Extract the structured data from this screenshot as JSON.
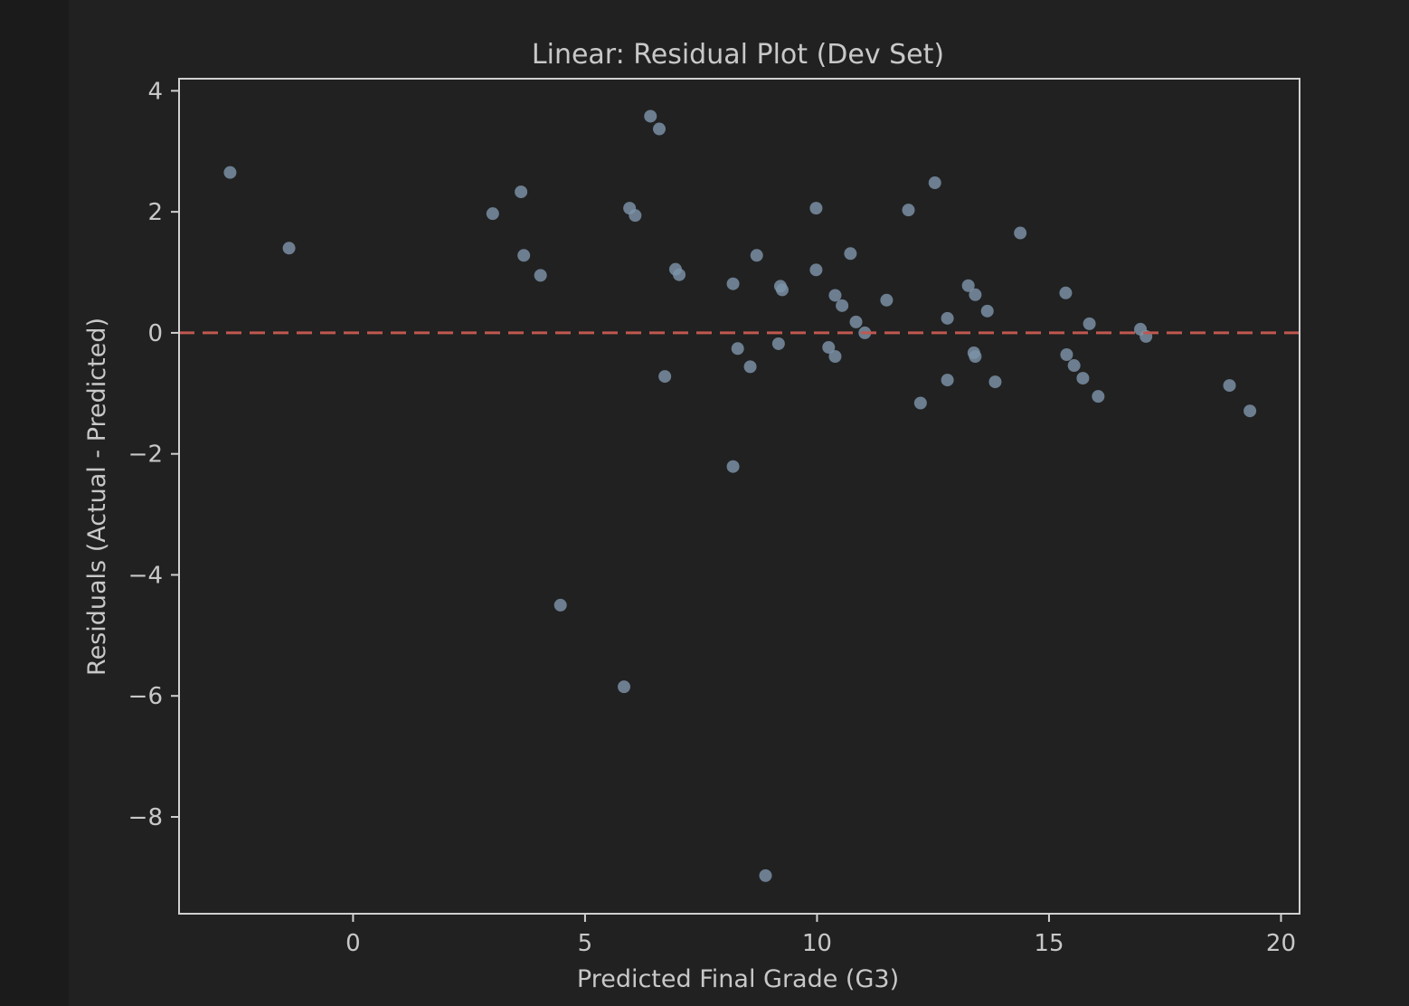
{
  "chart_data": {
    "type": "scatter",
    "title": "Linear: Residual Plot (Dev Set)",
    "xlabel": "Predicted Final Grade (G3)",
    "ylabel": "Residuals (Actual - Predicted)",
    "xlim": [
      -3.75,
      20.4
    ],
    "ylim": [
      -9.6,
      4.2
    ],
    "xticks": [
      0,
      5,
      10,
      15,
      20
    ],
    "yticks": [
      4,
      2,
      0,
      -2,
      -4,
      -6,
      -8
    ],
    "xtick_labels": [
      "0",
      "5",
      "10",
      "15",
      "20"
    ],
    "ytick_labels": [
      "4",
      "2",
      "0",
      "−2",
      "−4",
      "−6",
      "−8"
    ],
    "grid": false,
    "reference_line": {
      "y": 0,
      "style": "dashed",
      "color": "#c0584f"
    },
    "marker_color": "#7d93a8",
    "axes_color": "#d0d0d0",
    "points": [
      {
        "x": -2.65,
        "y": 2.65
      },
      {
        "x": -1.38,
        "y": 1.4
      },
      {
        "x": 3.01,
        "y": 1.97
      },
      {
        "x": 3.62,
        "y": 2.33
      },
      {
        "x": 3.68,
        "y": 1.28
      },
      {
        "x": 4.04,
        "y": 0.95
      },
      {
        "x": 4.47,
        "y": -4.5
      },
      {
        "x": 5.84,
        "y": -5.85
      },
      {
        "x": 5.96,
        "y": 2.06
      },
      {
        "x": 6.08,
        "y": 1.94
      },
      {
        "x": 6.41,
        "y": 3.58
      },
      {
        "x": 6.6,
        "y": 3.37
      },
      {
        "x": 6.72,
        "y": -0.72
      },
      {
        "x": 6.95,
        "y": 1.05
      },
      {
        "x": 7.03,
        "y": 0.96
      },
      {
        "x": 8.19,
        "y": 0.81
      },
      {
        "x": 8.19,
        "y": -2.21
      },
      {
        "x": 8.29,
        "y": -0.26
      },
      {
        "x": 8.56,
        "y": -0.56
      },
      {
        "x": 8.7,
        "y": 1.28
      },
      {
        "x": 8.89,
        "y": -8.97
      },
      {
        "x": 9.17,
        "y": -0.18
      },
      {
        "x": 9.21,
        "y": 0.77
      },
      {
        "x": 9.25,
        "y": 0.71
      },
      {
        "x": 9.98,
        "y": 2.06
      },
      {
        "x": 9.98,
        "y": 1.04
      },
      {
        "x": 10.25,
        "y": -0.24
      },
      {
        "x": 10.39,
        "y": 0.62
      },
      {
        "x": 10.39,
        "y": -0.39
      },
      {
        "x": 10.54,
        "y": 0.45
      },
      {
        "x": 10.72,
        "y": 1.31
      },
      {
        "x": 10.84,
        "y": 0.18
      },
      {
        "x": 11.03,
        "y": 0.0
      },
      {
        "x": 11.5,
        "y": 0.54
      },
      {
        "x": 11.97,
        "y": 2.03
      },
      {
        "x": 12.23,
        "y": -1.16
      },
      {
        "x": 12.54,
        "y": 2.48
      },
      {
        "x": 12.81,
        "y": 0.24
      },
      {
        "x": 12.81,
        "y": -0.78
      },
      {
        "x": 13.26,
        "y": 0.78
      },
      {
        "x": 13.38,
        "y": -0.33
      },
      {
        "x": 13.41,
        "y": 0.63
      },
      {
        "x": 13.41,
        "y": -0.39
      },
      {
        "x": 13.67,
        "y": 0.36
      },
      {
        "x": 13.84,
        "y": -0.81
      },
      {
        "x": 14.38,
        "y": 1.65
      },
      {
        "x": 15.36,
        "y": 0.66
      },
      {
        "x": 15.38,
        "y": -0.36
      },
      {
        "x": 15.54,
        "y": -0.54
      },
      {
        "x": 15.73,
        "y": -0.75
      },
      {
        "x": 15.87,
        "y": 0.15
      },
      {
        "x": 16.06,
        "y": -1.05
      },
      {
        "x": 16.97,
        "y": 0.06
      },
      {
        "x": 17.09,
        "y": -0.06
      },
      {
        "x": 18.89,
        "y": -0.87
      },
      {
        "x": 19.33,
        "y": -1.29
      }
    ]
  }
}
